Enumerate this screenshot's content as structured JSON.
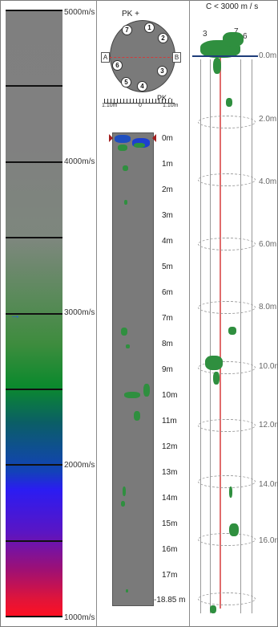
{
  "velocity_scale": {
    "labels": [
      "5000m/s",
      "4000m/s",
      "3000m/s",
      "2000m/s",
      "1000m/s"
    ]
  },
  "cross_section": {
    "pk_top": "PK +",
    "pk_bottom": "PK -",
    "side_a": "A",
    "side_b": "B",
    "points": [
      "1",
      "2",
      "3",
      "4",
      "5",
      "6",
      "7"
    ],
    "scale_left": "1.10m",
    "scale_mid": "0",
    "scale_right": "1.10m"
  },
  "depth_section": {
    "depths": [
      "0m",
      "1m",
      "2m",
      "3m",
      "4m",
      "5m",
      "6m",
      "7m",
      "8m",
      "9m",
      "10m",
      "11m",
      "12m",
      "13m",
      "14m",
      "15m",
      "16m",
      "17m"
    ],
    "bottom_depth": "-18.85 m"
  },
  "column_3d": {
    "title": "C < 3000 m / s",
    "depths": [
      "0.0m",
      "2.0m",
      "4.0m",
      "6.0m",
      "8.0m",
      "10.0m",
      "12.0m",
      "14.0m",
      "16.0m"
    ],
    "top_labels": [
      "3",
      "7",
      "6"
    ]
  },
  "colors": {
    "grey": "#7a7a7a",
    "anomaly_green": "#2f8f3f",
    "marker_red": "#a31f1f",
    "axis_line": "#e06b6b",
    "navy": "#1e3d7a"
  }
}
